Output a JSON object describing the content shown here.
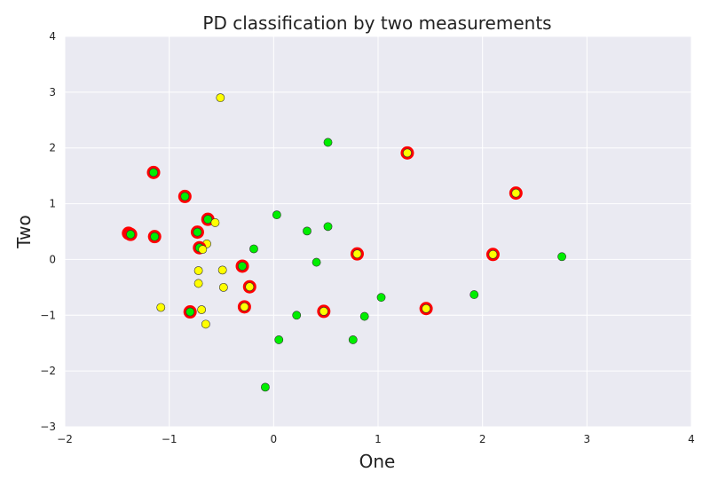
{
  "chart_data": {
    "type": "scatter",
    "title": "PD classification by two measurements",
    "xlabel": "One",
    "ylabel": "Two",
    "xlim": [
      -2,
      4
    ],
    "ylim": [
      -3,
      4
    ],
    "xticks": [
      -2,
      -1,
      0,
      1,
      2,
      3,
      4
    ],
    "yticks": [
      -3,
      -2,
      -1,
      0,
      1,
      2,
      3,
      4
    ],
    "xtick_labels": [
      "−2",
      "−1",
      "0",
      "1",
      "2",
      "3",
      "4"
    ],
    "ytick_labels": [
      "−3",
      "−2",
      "−1",
      "0",
      "1",
      "2",
      "3",
      "4"
    ],
    "grid": true,
    "colors": {
      "background": "#eaeaf2",
      "grid": "#ffffff",
      "green_point": "#00ee00",
      "yellow_point": "#ffff00",
      "highlight_ring": "#ff0000",
      "point_edge": "#333333"
    },
    "points": [
      {
        "x": -0.51,
        "y": 2.9,
        "color": "yellow",
        "ring": false
      },
      {
        "x": 1.28,
        "y": 1.91,
        "color": "yellow",
        "ring": true
      },
      {
        "x": 2.32,
        "y": 1.19,
        "color": "yellow",
        "ring": true
      },
      {
        "x": 0.52,
        "y": 2.1,
        "color": "green",
        "ring": false
      },
      {
        "x": -1.15,
        "y": 1.56,
        "color": "green",
        "ring": true
      },
      {
        "x": -0.85,
        "y": 1.13,
        "color": "green",
        "ring": true
      },
      {
        "x": -1.39,
        "y": 0.47,
        "color": "green",
        "ring": true
      },
      {
        "x": -1.37,
        "y": 0.45,
        "color": "green",
        "ring": true
      },
      {
        "x": -1.14,
        "y": 0.41,
        "color": "green",
        "ring": true
      },
      {
        "x": -0.63,
        "y": 0.72,
        "color": "green",
        "ring": true
      },
      {
        "x": -0.56,
        "y": 0.66,
        "color": "yellow",
        "ring": false
      },
      {
        "x": -0.73,
        "y": 0.49,
        "color": "green",
        "ring": true
      },
      {
        "x": -0.64,
        "y": 0.28,
        "color": "yellow",
        "ring": false
      },
      {
        "x": -0.71,
        "y": 0.21,
        "color": "green",
        "ring": true
      },
      {
        "x": -0.68,
        "y": 0.18,
        "color": "yellow",
        "ring": false
      },
      {
        "x": 0.03,
        "y": 0.8,
        "color": "green",
        "ring": false
      },
      {
        "x": 0.32,
        "y": 0.51,
        "color": "green",
        "ring": false
      },
      {
        "x": 0.52,
        "y": 0.59,
        "color": "green",
        "ring": false
      },
      {
        "x": -0.19,
        "y": 0.19,
        "color": "green",
        "ring": false
      },
      {
        "x": 0.41,
        "y": -0.05,
        "color": "green",
        "ring": false
      },
      {
        "x": 0.8,
        "y": 0.1,
        "color": "yellow",
        "ring": true
      },
      {
        "x": 2.1,
        "y": 0.09,
        "color": "yellow",
        "ring": true
      },
      {
        "x": 2.76,
        "y": 0.05,
        "color": "green",
        "ring": false
      },
      {
        "x": -0.3,
        "y": -0.12,
        "color": "green",
        "ring": true
      },
      {
        "x": -0.72,
        "y": -0.2,
        "color": "yellow",
        "ring": false
      },
      {
        "x": -0.49,
        "y": -0.19,
        "color": "yellow",
        "ring": false
      },
      {
        "x": -0.72,
        "y": -0.43,
        "color": "yellow",
        "ring": false
      },
      {
        "x": -0.48,
        "y": -0.5,
        "color": "yellow",
        "ring": false
      },
      {
        "x": -0.23,
        "y": -0.49,
        "color": "yellow",
        "ring": true
      },
      {
        "x": -1.08,
        "y": -0.86,
        "color": "yellow",
        "ring": false
      },
      {
        "x": -0.8,
        "y": -0.94,
        "color": "green",
        "ring": true
      },
      {
        "x": -0.69,
        "y": -0.9,
        "color": "yellow",
        "ring": false
      },
      {
        "x": -0.28,
        "y": -0.85,
        "color": "yellow",
        "ring": true
      },
      {
        "x": -0.65,
        "y": -1.16,
        "color": "yellow",
        "ring": false
      },
      {
        "x": 0.48,
        "y": -0.93,
        "color": "yellow",
        "ring": true
      },
      {
        "x": 0.22,
        "y": -1.0,
        "color": "green",
        "ring": false
      },
      {
        "x": 0.87,
        "y": -1.02,
        "color": "green",
        "ring": false
      },
      {
        "x": 1.03,
        "y": -0.68,
        "color": "green",
        "ring": false
      },
      {
        "x": 1.46,
        "y": -0.88,
        "color": "yellow",
        "ring": true
      },
      {
        "x": 1.92,
        "y": -0.63,
        "color": "green",
        "ring": false
      },
      {
        "x": 0.05,
        "y": -1.44,
        "color": "green",
        "ring": false
      },
      {
        "x": 0.76,
        "y": -1.44,
        "color": "green",
        "ring": false
      },
      {
        "x": -0.08,
        "y": -2.29,
        "color": "green",
        "ring": false
      }
    ]
  }
}
